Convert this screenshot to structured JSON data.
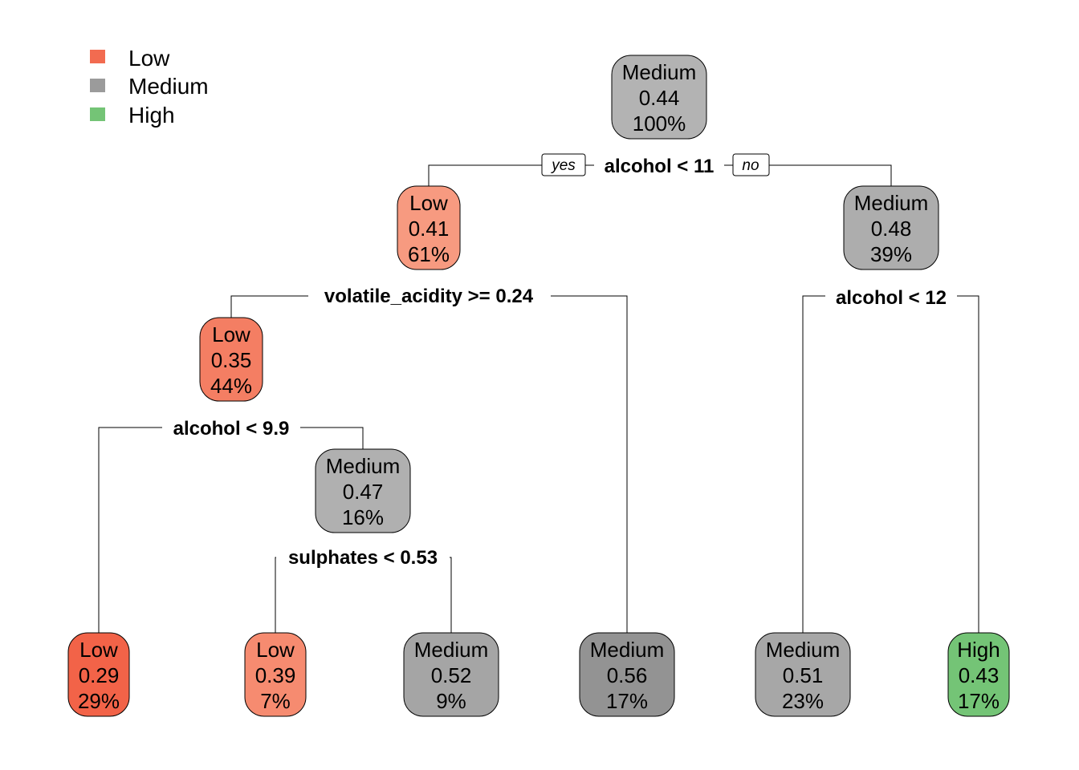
{
  "legend": [
    {
      "label": "Low",
      "color": "#f26b50"
    },
    {
      "label": "Medium",
      "color": "#9b9b9b"
    },
    {
      "label": "High",
      "color": "#74c476"
    }
  ],
  "yes_label": "yes",
  "no_label": "no",
  "nodes": [
    {
      "id": "n1",
      "class": "Medium",
      "value": "0.44",
      "percent": "100%",
      "fill": "#b3b3b3"
    },
    {
      "id": "n2",
      "class": "Low",
      "value": "0.41",
      "percent": "61%",
      "fill": "#f79a80"
    },
    {
      "id": "n3",
      "class": "Medium",
      "value": "0.48",
      "percent": "39%",
      "fill": "#adadad"
    },
    {
      "id": "n4",
      "class": "Low",
      "value": "0.35",
      "percent": "44%",
      "fill": "#f47e63"
    },
    {
      "id": "n5",
      "class": "Medium",
      "value": "0.47",
      "percent": "16%",
      "fill": "#b0b0b0"
    },
    {
      "id": "l1",
      "class": "Low",
      "value": "0.29",
      "percent": "29%",
      "fill": "#f26348"
    },
    {
      "id": "l2",
      "class": "Low",
      "value": "0.39",
      "percent": "7%",
      "fill": "#f68b70"
    },
    {
      "id": "l3",
      "class": "Medium",
      "value": "0.52",
      "percent": "9%",
      "fill": "#a5a5a5"
    },
    {
      "id": "l4",
      "class": "Medium",
      "value": "0.56",
      "percent": "17%",
      "fill": "#939393"
    },
    {
      "id": "l5",
      "class": "Medium",
      "value": "0.51",
      "percent": "23%",
      "fill": "#a7a7a7"
    },
    {
      "id": "l6",
      "class": "High",
      "value": "0.43",
      "percent": "17%",
      "fill": "#74c476"
    }
  ],
  "splits": [
    {
      "id": "s1",
      "label": "alcohol < 11"
    },
    {
      "id": "s2",
      "label": "volatile_acidity >= 0.24"
    },
    {
      "id": "s3",
      "label": "alcohol < 12"
    },
    {
      "id": "s4",
      "label": "alcohol < 9.9"
    },
    {
      "id": "s5",
      "label": "sulphates < 0.53"
    }
  ]
}
